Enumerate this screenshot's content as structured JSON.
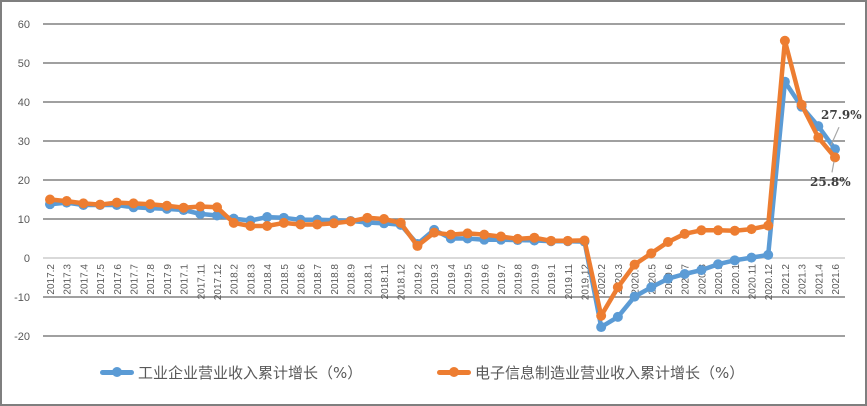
{
  "chart_data": {
    "type": "line",
    "title": "",
    "xlabel": "",
    "ylabel": "",
    "ylim": [
      -20,
      60
    ],
    "yticks": [
      -20,
      -10,
      0,
      10,
      20,
      30,
      40,
      50,
      60
    ],
    "grid": true,
    "legend_position": "bottom",
    "categories": [
      "2017.2",
      "2017.3",
      "2017.4",
      "2017.5",
      "2017.6",
      "2017.7",
      "2017.8",
      "2017.9",
      "2017.1",
      "2017.11",
      "2017.12",
      "2018.2",
      "2018.3",
      "2018.4",
      "2018.5",
      "2018.6",
      "2018.7",
      "2018.8",
      "2018.9",
      "2018.1",
      "2018.11",
      "2018.12",
      "2019.2",
      "2019.3",
      "2019.4",
      "2019.5",
      "2019.6",
      "2019.7",
      "2019.8",
      "2019.9",
      "2019.1",
      "2019.11",
      "2019.12",
      "2020.2",
      "2020.3",
      "2020.4",
      "2020.5",
      "2020.6",
      "2020.7",
      "2020.8",
      "2020.9",
      "2020.1",
      "2020.11",
      "2020.12",
      "2021.2",
      "2021.3",
      "2021.4",
      "2021.6"
    ],
    "series": [
      {
        "name": "工业企业营业收入累计增长（%）",
        "color": "#5b9bd5",
        "values": [
          13.8,
          14.2,
          13.6,
          13.6,
          13.6,
          13.0,
          12.8,
          12.6,
          12.3,
          11.3,
          10.9,
          10.1,
          9.6,
          10.5,
          10.3,
          9.8,
          9.8,
          9.7,
          9.5,
          9.1,
          8.9,
          8.5,
          3.6,
          7.2,
          5.0,
          5.0,
          4.7,
          4.7,
          4.6,
          4.5,
          4.3,
          4.3,
          4.2,
          -17.7,
          -15.1,
          -9.9,
          -7.5,
          -5.3,
          -4.1,
          -3.1,
          -1.6,
          -0.6,
          0.1,
          0.8,
          45.2,
          38.8,
          33.8,
          27.9
        ]
      },
      {
        "name": "电子信息制造业营业收入累计增长（%）",
        "color": "#ed7d31",
        "values": [
          15.0,
          14.6,
          14.0,
          13.7,
          14.2,
          14.0,
          13.8,
          13.4,
          12.9,
          13.2,
          13.0,
          9.0,
          8.2,
          8.2,
          9.0,
          8.6,
          8.6,
          8.9,
          9.4,
          10.3,
          10.0,
          9.0,
          3.1,
          6.5,
          6.0,
          6.3,
          6.0,
          5.5,
          4.9,
          5.2,
          4.4,
          4.4,
          4.5,
          -14.8,
          -7.5,
          -1.7,
          1.2,
          4.1,
          6.2,
          7.1,
          7.1,
          7.0,
          7.4,
          8.3,
          55.7,
          39.3,
          30.9,
          25.8
        ]
      }
    ],
    "annotations": [
      {
        "text": "27.9%",
        "series": 0,
        "category": "2021.6"
      },
      {
        "text": "25.8%",
        "series": 1,
        "category": "2021.6"
      }
    ]
  },
  "legend": {
    "series0": "工业企业营业收入累计增长（%）",
    "series1": "电子信息制造业营业收入累计增长（%）"
  }
}
